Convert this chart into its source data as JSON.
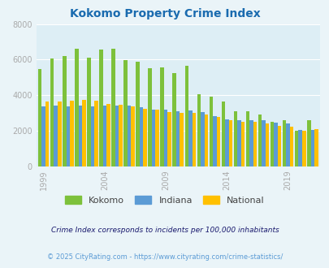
{
  "title": "Kokomo Property Crime Index",
  "title_color": "#1a6baf",
  "years": [
    1999,
    2000,
    2001,
    2002,
    2003,
    2004,
    2005,
    2006,
    2007,
    2008,
    2009,
    2010,
    2011,
    2012,
    2013,
    2014,
    2015,
    2016,
    2017,
    2018,
    2019,
    2020,
    2021
  ],
  "kokomo": [
    5450,
    6050,
    6180,
    6600,
    6120,
    6550,
    6600,
    5970,
    5870,
    5530,
    5560,
    5230,
    5670,
    4060,
    3910,
    3640,
    3080,
    3070,
    2930,
    2480,
    2580,
    2000,
    2580
  ],
  "indiana": [
    3350,
    3400,
    3380,
    3390,
    3370,
    3410,
    3430,
    3400,
    3300,
    3200,
    3180,
    3070,
    3130,
    3060,
    2810,
    2640,
    2570,
    2600,
    2600,
    2450,
    2390,
    2050,
    2050
  ],
  "national": [
    3650,
    3650,
    3700,
    3720,
    3700,
    3490,
    3440,
    3350,
    3220,
    3200,
    3050,
    3000,
    2990,
    2920,
    2760,
    2600,
    2510,
    2480,
    2390,
    2250,
    2240,
    1990,
    2080
  ],
  "kokomo_color": "#7dc13b",
  "indiana_color": "#5b9bd5",
  "national_color": "#ffc000",
  "bg_color": "#eaf4f8",
  "plot_bg_color": "#ddeef5",
  "ylim": [
    0,
    8000
  ],
  "yticks": [
    0,
    2000,
    4000,
    6000,
    8000
  ],
  "xtick_years": [
    1999,
    2004,
    2009,
    2014,
    2019
  ],
  "footnote1": "Crime Index corresponds to incidents per 100,000 inhabitants",
  "footnote2": "© 2025 CityRating.com - https://www.cityrating.com/crime-statistics/",
  "footnote1_color": "#1a1a6e",
  "footnote2_color": "#5b9bd5"
}
